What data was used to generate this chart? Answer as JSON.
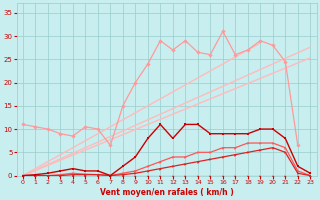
{
  "x": [
    0,
    1,
    2,
    3,
    4,
    5,
    6,
    7,
    8,
    9,
    10,
    11,
    12,
    13,
    14,
    15,
    16,
    17,
    18,
    19,
    20,
    21,
    22,
    23
  ],
  "rafales": [
    11,
    10.5,
    10,
    9,
    8.5,
    10.5,
    10,
    6.5,
    15,
    20,
    24,
    29,
    27,
    29,
    26.5,
    26,
    31,
    26,
    27,
    29,
    28,
    24.5,
    6.5,
    null
  ],
  "moyen": [
    0,
    0.2,
    0.5,
    1,
    1.5,
    1,
    1,
    0,
    2,
    4,
    8,
    11,
    8,
    11,
    11,
    9,
    9,
    9,
    9,
    10,
    10,
    8,
    2,
    0.5
  ],
  "diag1": [
    0,
    1.5,
    3,
    4.5,
    6,
    7.5,
    9,
    10.5,
    12,
    13.5,
    15,
    16.5,
    18,
    19.5,
    21,
    22.5,
    24,
    25.5,
    27,
    28.5,
    null,
    null,
    null,
    null
  ],
  "diag2": [
    0,
    1.2,
    2.4,
    3.6,
    4.8,
    6,
    7.2,
    8.4,
    9.6,
    10.8,
    12,
    13.2,
    14.4,
    15.6,
    16.8,
    18,
    19.2,
    20.4,
    21.6,
    22.8,
    24,
    25.2,
    26.4,
    27.6
  ],
  "diag3": [
    0,
    1.1,
    2.2,
    3.3,
    4.4,
    5.5,
    6.6,
    7.7,
    8.8,
    9.9,
    11,
    12.1,
    13.2,
    14.3,
    15.4,
    16.5,
    17.6,
    18.7,
    19.8,
    20.9,
    22,
    23.1,
    24.2,
    25.3
  ],
  "near_zero_a": [
    0,
    0,
    0,
    0.2,
    0.5,
    0.3,
    0.2,
    0,
    0.5,
    1,
    2,
    3,
    4,
    4,
    5,
    5,
    6,
    6,
    7,
    7,
    7,
    6,
    1,
    0
  ],
  "near_zero_b": [
    0,
    0,
    0,
    0,
    0.2,
    0.2,
    0.2,
    0,
    0.2,
    0.5,
    1,
    1.5,
    2,
    2.5,
    3,
    3.5,
    4,
    4.5,
    5,
    5.5,
    6,
    5,
    0.5,
    0
  ],
  "flat": [
    0,
    0,
    0,
    0,
    0,
    0,
    0,
    0,
    0,
    0,
    0,
    0,
    0,
    0,
    0,
    0,
    0,
    0,
    0,
    0,
    0,
    0,
    0,
    0
  ],
  "bg_color": "#c8eef0",
  "grid_color": "#99cccc",
  "rafales_color": "#ff9999",
  "moyen_color": "#cc0000",
  "diag_color": "#ffbbbb",
  "near_zero_color_a": "#ff5555",
  "near_zero_color_b": "#dd2222",
  "flat_color": "#cc0000",
  "tick_color": "#cc0000",
  "xlabel": "Vent moyen/en rafales ( km/h )",
  "xlabel_color": "#cc0000",
  "ylabel_ticks": [
    0,
    5,
    10,
    15,
    20,
    25,
    30,
    35
  ],
  "xticks": [
    0,
    1,
    2,
    3,
    4,
    5,
    6,
    7,
    8,
    9,
    10,
    11,
    12,
    13,
    14,
    15,
    16,
    17,
    18,
    19,
    20,
    21,
    22,
    23
  ],
  "xlim": [
    -0.5,
    23.5
  ],
  "ylim": [
    0,
    37
  ]
}
